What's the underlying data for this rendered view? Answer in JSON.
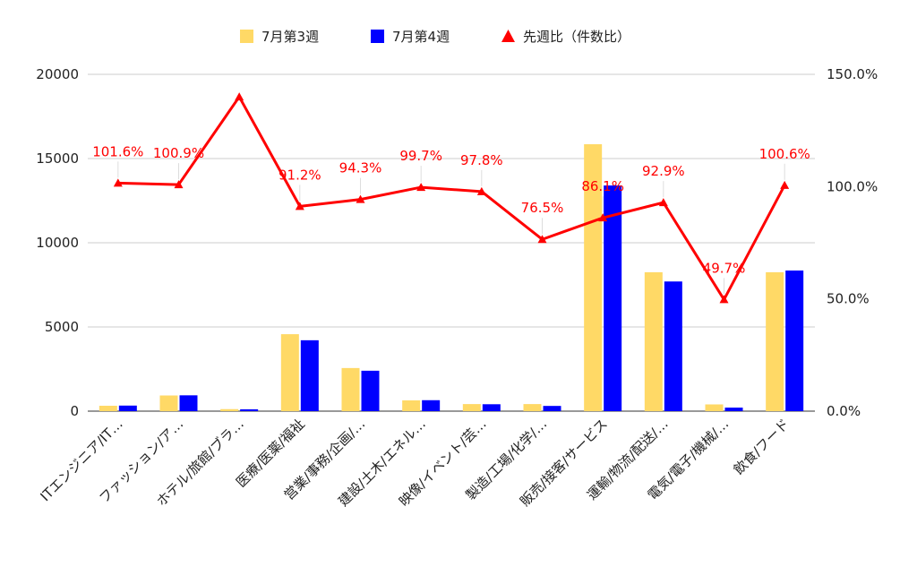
{
  "chart_data": {
    "type": "bar",
    "categories": [
      "ITエンジニア/IT…",
      "ファッション/ア…",
      "ホテル/旅館/ブラ…",
      "医療/医薬/福祉",
      "営業/事務/企画/…",
      "建設/土木/エネル…",
      "映像/イベント/芸…",
      "製造/工場/化学/…",
      "販売/接客/サービス",
      "運輸/物流/配送/…",
      "電気/電子/機械/…",
      "飲食/フード"
    ],
    "series": [
      {
        "name": "7月第3週",
        "kind": "bar",
        "axis": "left",
        "color": "#ffd966",
        "values": [
          320,
          930,
          120,
          4570,
          2560,
          640,
          420,
          420,
          15850,
          8250,
          400,
          8250
        ]
      },
      {
        "name": "7月第4週",
        "kind": "bar",
        "axis": "left",
        "color": "#0000ff",
        "values": [
          330,
          940,
          110,
          4210,
          2400,
          650,
          410,
          310,
          13400,
          7700,
          210,
          8350
        ]
      },
      {
        "name": "先週比（件数比）",
        "kind": "line",
        "axis": "right",
        "color": "#ff0000",
        "values": [
          101.6,
          100.9,
          140.0,
          91.2,
          94.3,
          99.7,
          97.8,
          76.5,
          86.1,
          92.9,
          49.7,
          100.6
        ],
        "labels": [
          "101.6%",
          "100.9%",
          "",
          "91.2%",
          "94.3%",
          "99.7%",
          "97.8%",
          "76.5%",
          "86.1%",
          "92.9%",
          "49.7%",
          "100.6%"
        ]
      }
    ],
    "y_left": {
      "min": 0,
      "max": 20000,
      "ticks": [
        "0",
        "5000",
        "10000",
        "15000",
        "20000"
      ]
    },
    "y_right": {
      "min": 0,
      "max": 150,
      "ticks": [
        "0.0%",
        "50.0%",
        "100.0%",
        "150.0%"
      ]
    },
    "legend_position": "top",
    "grid": true
  }
}
